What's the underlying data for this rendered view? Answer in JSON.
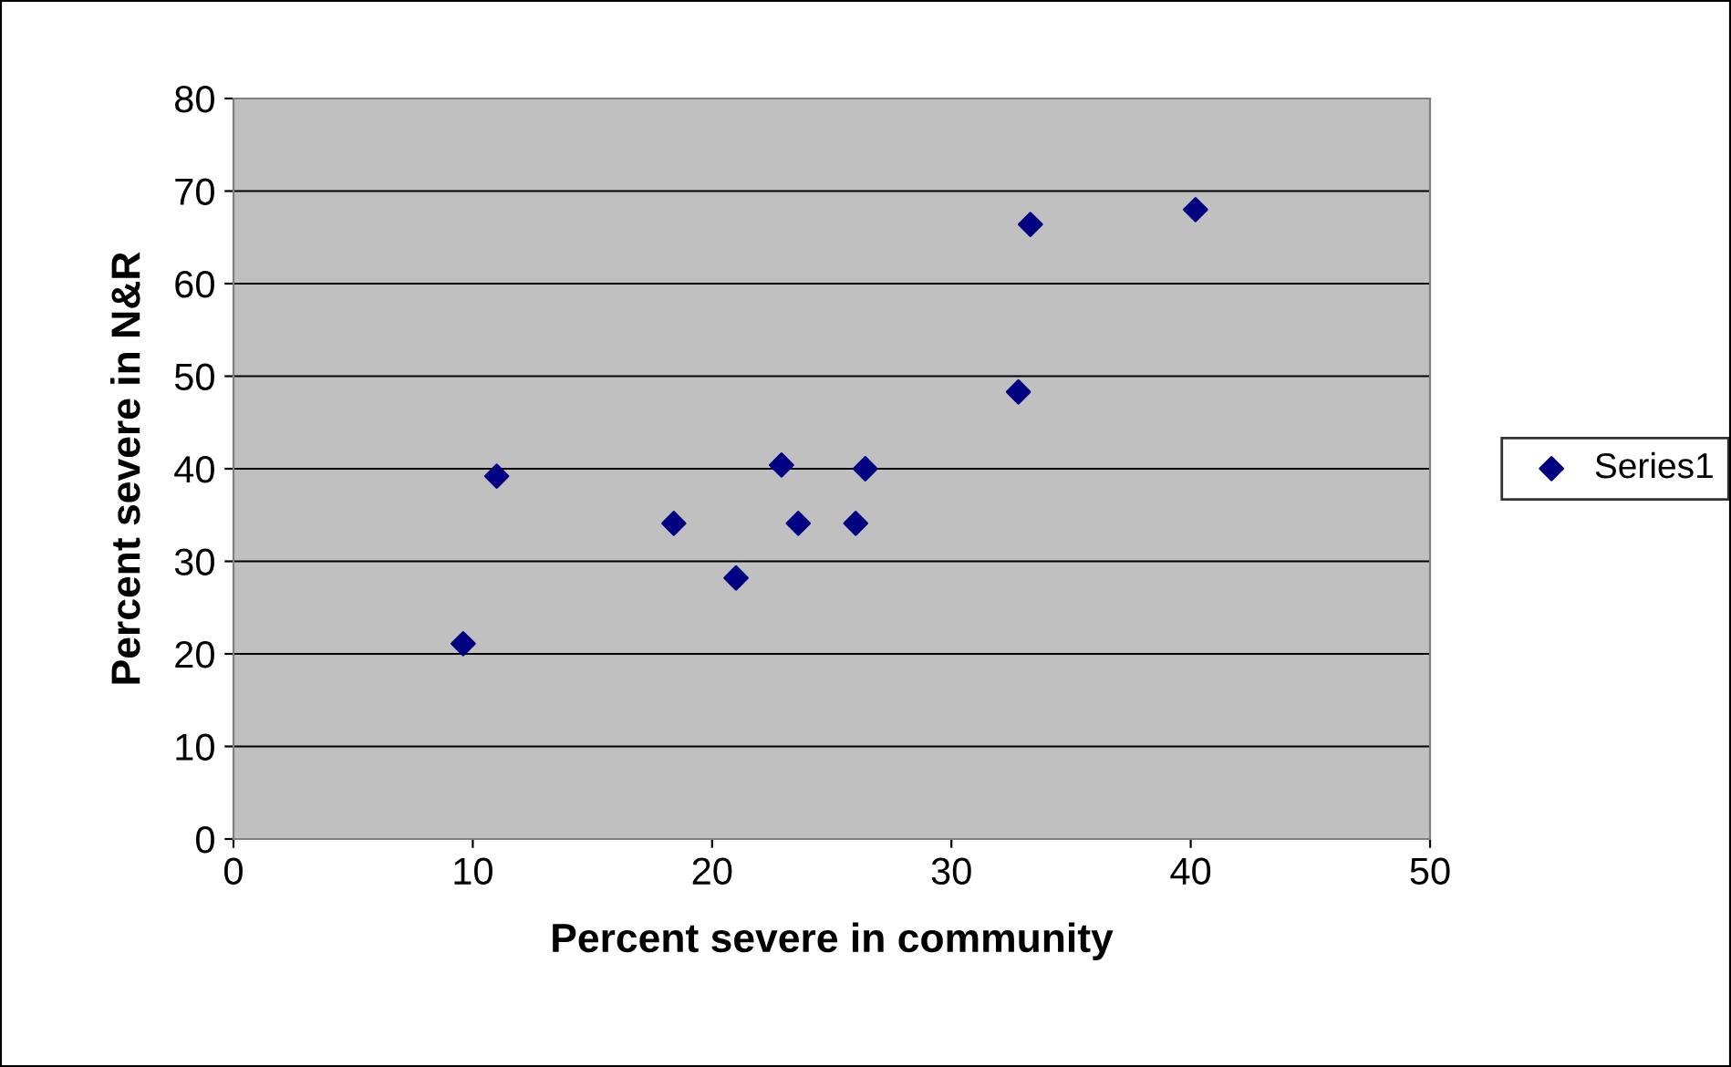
{
  "chart_data": {
    "type": "scatter",
    "xlabel": "Percent severe in community",
    "ylabel": "Percent severe in N&R",
    "series": [
      {
        "name": "Series1",
        "color": "#000080",
        "x": [
          9.6,
          11.0,
          18.4,
          21.0,
          22.9,
          23.6,
          26.0,
          26.4,
          32.8,
          33.3,
          40.2
        ],
        "values": [
          21.1,
          39.2,
          34.1,
          28.2,
          40.4,
          34.1,
          34.1,
          40.0,
          48.3,
          66.4,
          68.0
        ]
      }
    ],
    "xlim": [
      0,
      50
    ],
    "xticks": [
      0,
      10,
      20,
      30,
      40,
      50
    ],
    "ylim": [
      0,
      80
    ],
    "yticks": [
      0,
      10,
      20,
      30,
      40,
      50,
      60,
      70,
      80
    ],
    "grid": "y",
    "legend": "right",
    "marker": "diamond"
  }
}
